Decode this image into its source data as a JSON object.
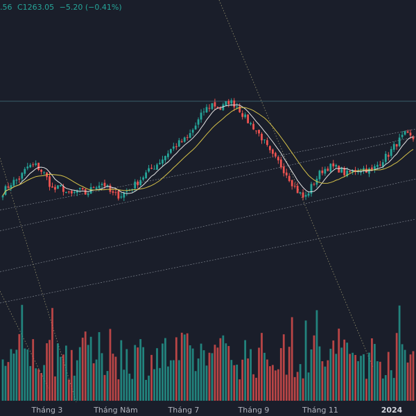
{
  "legend": {
    "low_fragment": ".56",
    "close": "C1263.05",
    "change": "−5.20 (−0.41%)"
  },
  "colors": {
    "background": "#1a1e2a",
    "up": "#26a69a",
    "down": "#ef5350",
    "ma_fast": "#e6e6e6",
    "ma_slow": "#d8c44a",
    "channel": "#9aa0aa",
    "diagonal": "#c8c089"
  },
  "chart_data": {
    "type": "candlestick",
    "title": "",
    "x_tick_labels": [
      "Tháng 3",
      "Tháng Năm",
      "Tháng 7",
      "Tháng 9",
      "Tháng 11",
      "2024"
    ],
    "bold_tick": "2024",
    "y_axis": {
      "visible": false,
      "range": [
        900,
        1320
      ]
    },
    "close_sequence": [
      1045,
      1068,
      1080,
      1110,
      1112,
      1090,
      1050,
      1058,
      1035,
      1050,
      1040,
      1062,
      1068,
      1040,
      1036,
      1050,
      1068,
      1090,
      1108,
      1128,
      1152,
      1168,
      1180,
      1212,
      1250,
      1268,
      1255,
      1275,
      1262,
      1230,
      1208,
      1180,
      1140,
      1118,
      1088,
      1052,
      1028,
      1065,
      1098,
      1110,
      1105,
      1090,
      1100,
      1105,
      1098,
      1120,
      1140,
      1168,
      1190,
      1180
    ],
    "moving_averages": [
      {
        "name": "",
        "period_hint": "short"
      },
      {
        "name": "",
        "period_hint": "long"
      }
    ],
    "volume": "shown as bars at bottom, colored by candle direction",
    "grid": false,
    "trend_channels": 4,
    "diagonal_lines": 3
  }
}
